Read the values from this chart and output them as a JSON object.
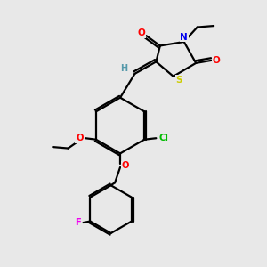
{
  "background_color": "#e8e8e8",
  "bond_color": "#000000",
  "atom_colors": {
    "O": "#ff0000",
    "N": "#0000ee",
    "S": "#cccc00",
    "Cl": "#00bb00",
    "F": "#ee00ee",
    "H": "#5599aa",
    "C": "#000000"
  },
  "figsize": [
    3.0,
    3.0
  ],
  "dpi": 100,
  "lw": 1.6
}
